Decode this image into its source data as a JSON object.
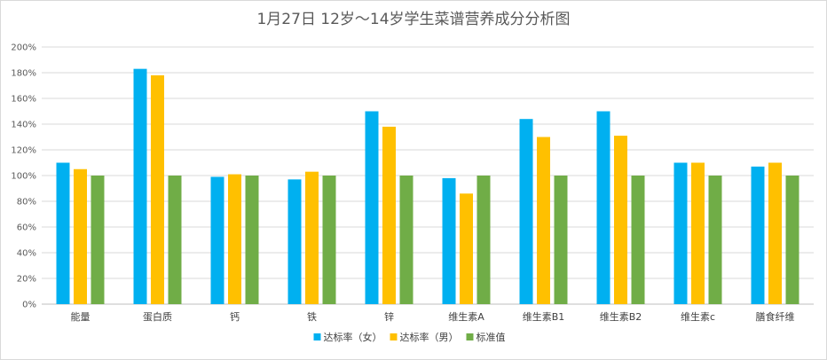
{
  "chart_data": {
    "type": "bar",
    "title": "1月27日 12岁～14岁学生菜谱营养成分分析图",
    "xlabel": "",
    "ylabel": "",
    "categories": [
      "能量",
      "蛋白质",
      "钙",
      "铁",
      "锌",
      "维生素A",
      "维生素B1",
      "维生素B2",
      "维生素c",
      "膳食纤维"
    ],
    "yticks": [
      "0%",
      "20%",
      "40%",
      "60%",
      "80%",
      "100%",
      "120%",
      "140%",
      "160%",
      "180%",
      "200%"
    ],
    "ylim": [
      0,
      200
    ],
    "grid": true,
    "legend": "bottom",
    "series": [
      {
        "name": "达标率（女）",
        "color": "#00b0f0",
        "values": [
          110,
          183,
          99,
          97,
          150,
          98,
          144,
          150,
          110,
          107
        ]
      },
      {
        "name": "达标率（男）",
        "color": "#ffc000",
        "values": [
          105,
          178,
          101,
          103,
          138,
          86,
          130,
          131,
          110,
          110
        ]
      },
      {
        "name": "标准值",
        "color": "#70ad47",
        "values": [
          100,
          100,
          100,
          100,
          100,
          100,
          100,
          100,
          100,
          100
        ]
      }
    ]
  }
}
